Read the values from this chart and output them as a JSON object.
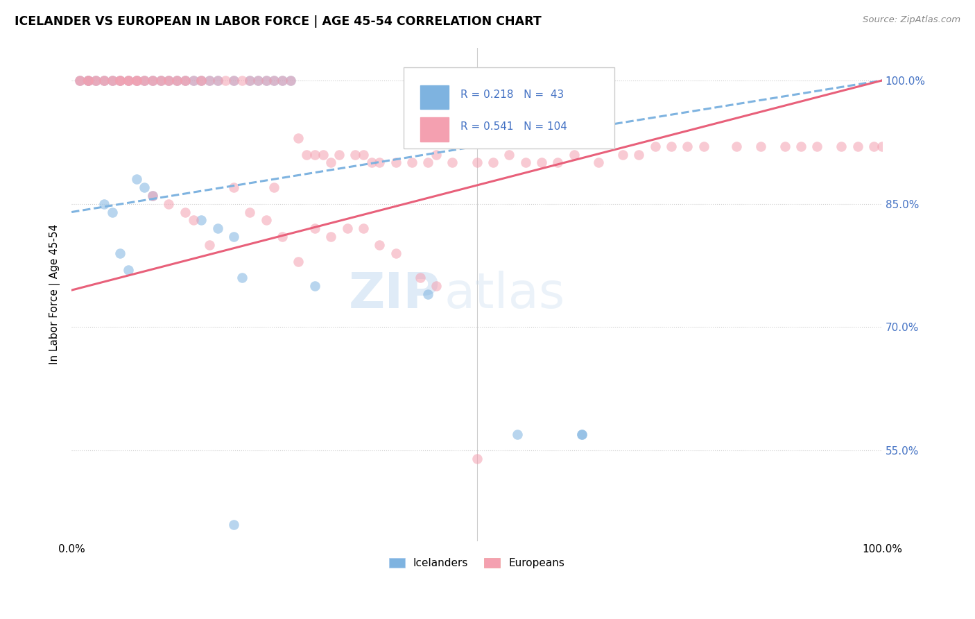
{
  "title": "ICELANDER VS EUROPEAN IN LABOR FORCE | AGE 45-54 CORRELATION CHART",
  "source": "Source: ZipAtlas.com",
  "ylabel": "In Labor Force | Age 45-54",
  "ytick_labels": [
    "55.0%",
    "70.0%",
    "85.0%",
    "100.0%"
  ],
  "ytick_values": [
    0.55,
    0.7,
    0.85,
    1.0
  ],
  "xlim": [
    0.0,
    1.0
  ],
  "ylim": [
    0.44,
    1.04
  ],
  "icelander_color": "#7EB3E0",
  "european_color": "#F4A0B0",
  "icelander_line_color": "#7EB3E0",
  "european_line_color": "#E8607A",
  "R_icelander": 0.218,
  "N_icelander": 43,
  "R_european": 0.541,
  "N_european": 104,
  "watermark_text": "ZIP",
  "watermark_text2": "atlas",
  "legend_label1": "Icelanders",
  "legend_label2": "Europeans",
  "icelander_scatter_x": [
    0.01,
    0.02,
    0.02,
    0.03,
    0.04,
    0.05,
    0.06,
    0.07,
    0.08,
    0.09,
    0.1,
    0.11,
    0.12,
    0.13,
    0.14,
    0.15,
    0.16,
    0.17,
    0.18,
    0.2,
    0.22,
    0.23,
    0.24,
    0.25,
    0.26,
    0.27,
    0.08,
    0.09,
    0.1,
    0.04,
    0.05,
    0.16,
    0.18,
    0.2,
    0.06,
    0.07,
    0.3,
    0.44,
    0.55,
    0.63,
    0.63,
    0.21,
    0.2
  ],
  "icelander_scatter_y": [
    1.0,
    1.0,
    1.0,
    1.0,
    1.0,
    1.0,
    1.0,
    1.0,
    1.0,
    1.0,
    1.0,
    1.0,
    1.0,
    1.0,
    1.0,
    1.0,
    1.0,
    1.0,
    1.0,
    1.0,
    1.0,
    1.0,
    1.0,
    1.0,
    1.0,
    1.0,
    0.88,
    0.87,
    0.86,
    0.85,
    0.84,
    0.83,
    0.82,
    0.81,
    0.79,
    0.77,
    0.75,
    0.74,
    0.57,
    0.57,
    0.57,
    0.76,
    0.46
  ],
  "european_scatter_x": [
    0.01,
    0.01,
    0.02,
    0.02,
    0.02,
    0.03,
    0.03,
    0.04,
    0.04,
    0.05,
    0.05,
    0.06,
    0.06,
    0.06,
    0.07,
    0.07,
    0.07,
    0.08,
    0.08,
    0.08,
    0.09,
    0.09,
    0.1,
    0.1,
    0.11,
    0.11,
    0.12,
    0.12,
    0.13,
    0.13,
    0.14,
    0.14,
    0.15,
    0.16,
    0.16,
    0.17,
    0.18,
    0.19,
    0.2,
    0.21,
    0.22,
    0.23,
    0.24,
    0.25,
    0.26,
    0.27,
    0.28,
    0.29,
    0.3,
    0.31,
    0.32,
    0.33,
    0.35,
    0.36,
    0.37,
    0.38,
    0.4,
    0.42,
    0.44,
    0.45,
    0.47,
    0.5,
    0.52,
    0.54,
    0.56,
    0.58,
    0.6,
    0.62,
    0.65,
    0.68,
    0.7,
    0.72,
    0.74,
    0.76,
    0.78,
    0.82,
    0.85,
    0.88,
    0.9,
    0.92,
    0.95,
    0.97,
    0.99,
    1.0,
    0.5,
    0.2,
    0.25,
    0.22,
    0.24,
    0.3,
    0.32,
    0.34,
    0.36,
    0.38,
    0.4,
    0.1,
    0.12,
    0.14,
    0.15,
    0.26,
    0.17,
    0.28,
    0.43,
    0.45
  ],
  "european_scatter_y": [
    1.0,
    1.0,
    1.0,
    1.0,
    1.0,
    1.0,
    1.0,
    1.0,
    1.0,
    1.0,
    1.0,
    1.0,
    1.0,
    1.0,
    1.0,
    1.0,
    1.0,
    1.0,
    1.0,
    1.0,
    1.0,
    1.0,
    1.0,
    1.0,
    1.0,
    1.0,
    1.0,
    1.0,
    1.0,
    1.0,
    1.0,
    1.0,
    1.0,
    1.0,
    1.0,
    1.0,
    1.0,
    1.0,
    1.0,
    1.0,
    1.0,
    1.0,
    1.0,
    1.0,
    1.0,
    1.0,
    0.93,
    0.91,
    0.91,
    0.91,
    0.9,
    0.91,
    0.91,
    0.91,
    0.9,
    0.9,
    0.9,
    0.9,
    0.9,
    0.91,
    0.9,
    0.9,
    0.9,
    0.91,
    0.9,
    0.9,
    0.9,
    0.91,
    0.9,
    0.91,
    0.91,
    0.92,
    0.92,
    0.92,
    0.92,
    0.92,
    0.92,
    0.92,
    0.92,
    0.92,
    0.92,
    0.92,
    0.92,
    0.92,
    0.54,
    0.87,
    0.87,
    0.84,
    0.83,
    0.82,
    0.81,
    0.82,
    0.82,
    0.8,
    0.79,
    0.86,
    0.85,
    0.84,
    0.83,
    0.81,
    0.8,
    0.78,
    0.76,
    0.75
  ],
  "ice_line_x0": 0.0,
  "ice_line_x1": 1.0,
  "ice_line_y0": 0.84,
  "ice_line_y1": 1.0,
  "eur_line_x0": 0.0,
  "eur_line_x1": 1.0,
  "eur_line_y0": 0.745,
  "eur_line_y1": 1.0
}
